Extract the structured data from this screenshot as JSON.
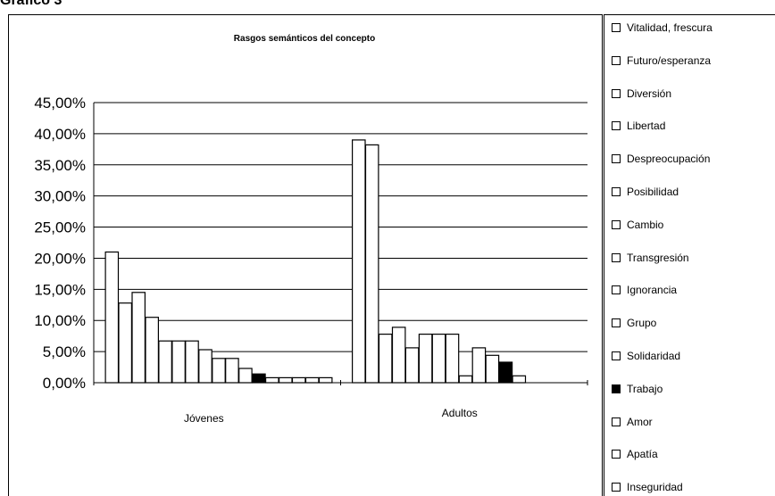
{
  "page_heading": "Gráfico 3",
  "chart_data": {
    "type": "bar",
    "title": "Rasgos semánticos del concepto",
    "xlabel": "",
    "ylabel": "",
    "categories": [
      "Jóvenes",
      "Adultos"
    ],
    "ylim": [
      0,
      45
    ],
    "yticks": [
      "0,00%",
      "5,00%",
      "10,00%",
      "15,00%",
      "20,00%",
      "25,00%",
      "30,00%",
      "35,00%",
      "40,00%",
      "45,00%"
    ],
    "grid": true,
    "legend_position": "right",
    "series": [
      {
        "name": "Vitalidad, frescura",
        "values": [
          21.0,
          39.0
        ],
        "fill": "#ffffff"
      },
      {
        "name": "Futuro/esperanza",
        "values": [
          12.8,
          38.2
        ],
        "fill": "#ffffff"
      },
      {
        "name": "Diversión",
        "values": [
          14.5,
          7.8
        ],
        "fill": "#ffffff"
      },
      {
        "name": "Libertad",
        "values": [
          10.5,
          8.9
        ],
        "fill": "#ffffff"
      },
      {
        "name": "Despreocupación",
        "values": [
          6.7,
          5.6
        ],
        "fill": "#ffffff"
      },
      {
        "name": "Posibilidad",
        "values": [
          6.7,
          7.8
        ],
        "fill": "#ffffff"
      },
      {
        "name": "Cambio",
        "values": [
          6.7,
          7.8
        ],
        "fill": "#ffffff"
      },
      {
        "name": "Transgresión",
        "values": [
          5.3,
          7.8
        ],
        "fill": "#ffffff"
      },
      {
        "name": "Ignorancia",
        "values": [
          3.9,
          1.1
        ],
        "fill": "#ffffff"
      },
      {
        "name": "Grupo",
        "values": [
          3.9,
          5.6
        ],
        "fill": "#ffffff"
      },
      {
        "name": "Solidaridad",
        "values": [
          2.3,
          4.4
        ],
        "fill": "#ffffff"
      },
      {
        "name": "Trabajo",
        "values": [
          1.4,
          3.3
        ],
        "fill": "#000000"
      },
      {
        "name": "Amor",
        "values": [
          0.8,
          1.1
        ],
        "fill": "#ffffff"
      },
      {
        "name": "Apatía",
        "values": [
          0.8,
          0
        ],
        "fill": "#ffffff"
      },
      {
        "name": "Inseguridad",
        "values": [
          0.8,
          0
        ],
        "fill": "#ffffff"
      },
      {
        "name": "",
        "values": [
          0.8,
          0
        ],
        "fill": "#ffffff"
      },
      {
        "name": "",
        "values": [
          0.8,
          0
        ],
        "fill": "#ffffff"
      }
    ]
  }
}
